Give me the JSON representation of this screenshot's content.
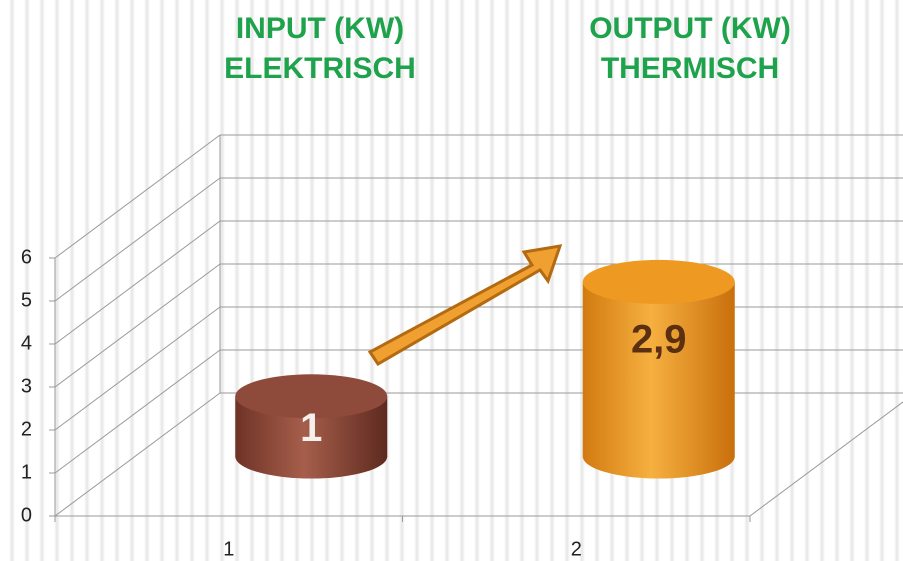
{
  "chart_data": {
    "type": "cylinder3d",
    "annotations": [
      [
        "INPUT (KW)",
        "ELEKTRISCH"
      ],
      [
        "OUTPUT (KW)",
        "THERMISCH"
      ]
    ],
    "categories": [
      "1",
      "2"
    ],
    "values": [
      1,
      2.9
    ],
    "value_labels": [
      "1",
      "2,9"
    ],
    "colors": [
      "#8e4b3b",
      "#ee9a22"
    ],
    "ylim": [
      0,
      6
    ],
    "yticks": [
      0,
      1,
      2,
      3,
      4,
      5,
      6
    ],
    "grid": true
  }
}
